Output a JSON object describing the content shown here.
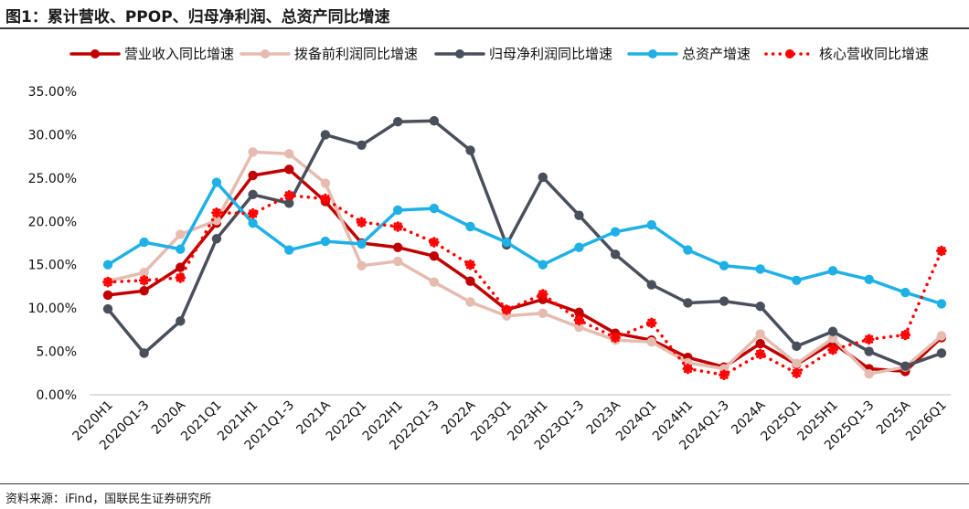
{
  "title": "图1：累计营收、PPOP、归母净利润、总资产同比增速",
  "source": "资料来源：iFind，国联民生证券研究所",
  "chart_data": {
    "type": "line",
    "title": "图1：累计营收、PPOP、归母净利润、总资产同比增速",
    "xlabel": "",
    "ylabel": "",
    "ylim": [
      0,
      35
    ],
    "yticks": [
      "0.00%",
      "5.00%",
      "10.00%",
      "15.00%",
      "20.00%",
      "25.00%",
      "30.00%",
      "35.00%"
    ],
    "legend_position": "top",
    "grid": false,
    "categories": [
      "2020H1",
      "2020Q1-3",
      "2020A",
      "2021Q1",
      "2021H1",
      "2021Q1-3",
      "2021A",
      "2022Q1",
      "2022H1",
      "2022Q1-3",
      "2022A",
      "2023Q1",
      "2023H1",
      "2023Q1-3",
      "2023A",
      "2024Q1",
      "2024H1",
      "2024Q1-3",
      "2024A",
      "2025Q1",
      "2025H1",
      "2025Q1-3",
      "2025A",
      "2026Q1"
    ],
    "series": [
      {
        "name": "营业收入同比增速",
        "color": "#c00000",
        "style": "solid",
        "values": [
          11.5,
          12.0,
          14.7,
          19.8,
          25.3,
          26.0,
          22.3,
          17.5,
          17.0,
          16.0,
          13.1,
          9.8,
          11.0,
          9.5,
          7.1,
          6.3,
          4.3,
          3.2,
          5.9,
          3.5,
          6.0,
          3.0,
          2.7,
          6.6
        ]
      },
      {
        "name": "拨备前利润同比增速",
        "color": "#e6bcb0",
        "style": "solid",
        "values": [
          13.1,
          14.1,
          18.5,
          20.1,
          28.0,
          27.8,
          24.4,
          14.9,
          15.4,
          13.0,
          10.7,
          9.1,
          9.4,
          7.8,
          6.3,
          6.1,
          3.7,
          3.0,
          7.0,
          3.6,
          6.5,
          2.4,
          3.2,
          6.8
        ]
      },
      {
        "name": "归母净利润同比增速",
        "color": "#4a4f5c",
        "style": "solid",
        "values": [
          9.9,
          4.8,
          8.5,
          18.0,
          23.1,
          22.1,
          30.0,
          28.8,
          31.5,
          31.6,
          28.2,
          17.3,
          25.1,
          20.7,
          16.2,
          12.7,
          10.6,
          10.8,
          10.2,
          5.6,
          7.3,
          5.0,
          3.3,
          4.8
        ]
      },
      {
        "name": "总资产增速",
        "color": "#1fb1e6",
        "style": "solid",
        "values": [
          15.0,
          17.6,
          16.8,
          24.5,
          19.8,
          16.7,
          17.7,
          17.4,
          21.3,
          21.5,
          19.4,
          17.6,
          15.0,
          17.0,
          18.8,
          19.6,
          16.7,
          14.9,
          14.5,
          13.2,
          14.3,
          13.3,
          11.8,
          10.5
        ]
      },
      {
        "name": "核心营收同比增速",
        "color": "#ff0000",
        "style": "dotted",
        "values": [
          13.0,
          13.2,
          13.5,
          21.0,
          20.9,
          23.0,
          22.6,
          19.9,
          19.4,
          17.6,
          15.0,
          9.8,
          11.6,
          8.6,
          6.6,
          8.3,
          3.0,
          2.3,
          4.7,
          2.5,
          5.2,
          6.4,
          6.9,
          16.6
        ]
      }
    ]
  }
}
